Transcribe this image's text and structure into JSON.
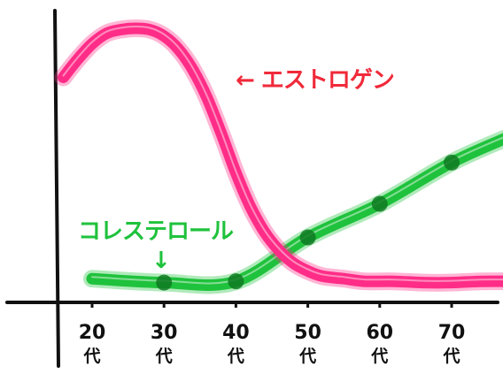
{
  "chart_data": {
    "type": "line",
    "x": [
      20,
      30,
      40,
      50,
      60,
      70
    ],
    "categories": [
      {
        "number": "20",
        "suffix": "代"
      },
      {
        "number": "30",
        "suffix": "代"
      },
      {
        "number": "40",
        "suffix": "代"
      },
      {
        "number": "50",
        "suffix": "代"
      },
      {
        "number": "60",
        "suffix": "代"
      },
      {
        "number": "70",
        "suffix": "代"
      }
    ],
    "xlim": [
      15,
      78
    ],
    "ylim": [
      0,
      100
    ],
    "grid": false,
    "legend": "none",
    "series": [
      {
        "name": "エストロゲン",
        "label_text": "← エストロゲン",
        "color": "#ff2d87",
        "x": [
          16,
          18,
          20,
          22,
          24,
          26,
          28,
          30,
          32,
          34,
          36,
          38,
          40,
          42,
          44,
          46,
          48,
          50,
          52,
          55,
          58,
          62,
          66,
          70,
          74,
          78
        ],
        "values": [
          81,
          88,
          94,
          98,
          99.5,
          100,
          99.5,
          97,
          92,
          84,
          73,
          59,
          44,
          31,
          21,
          14,
          9,
          6,
          4,
          3,
          2,
          2,
          1.5,
          1.5,
          2,
          2
        ]
      },
      {
        "name": "コレステロール",
        "label_text": "コレステロール",
        "arrow": "↓",
        "color": "#1fc23c",
        "x": [
          20,
          30,
          40,
          50,
          60,
          70,
          78
        ],
        "values": [
          3,
          1.5,
          2,
          19,
          32,
          48,
          58
        ],
        "markers": [
          30,
          40,
          50,
          60,
          70
        ]
      }
    ]
  }
}
